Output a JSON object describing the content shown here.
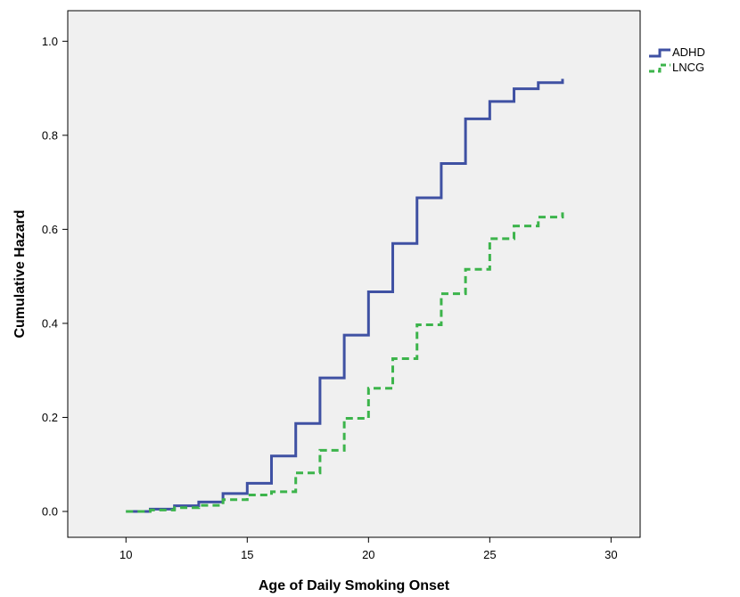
{
  "chart_data": {
    "type": "line",
    "step": true,
    "xlabel": "Age of Daily Smoking Onset",
    "ylabel": "Cumulative Hazard",
    "xlim": [
      7.6,
      31.2
    ],
    "ylim": [
      -0.055,
      1.065
    ],
    "xticks": [
      10,
      15,
      20,
      25,
      30
    ],
    "yticks": [
      0.0,
      0.2,
      0.4,
      0.6,
      0.8,
      1.0
    ],
    "xtick_labels": [
      "10",
      "15",
      "20",
      "25",
      "30"
    ],
    "ytick_labels": [
      "0.0",
      "0.2",
      "0.4",
      "0.6",
      "0.8",
      "1.0"
    ],
    "grid": false,
    "legend_position": "right",
    "plot_background": "#f0f0f0",
    "series": [
      {
        "name": "ADHD",
        "color": "#3f51a3",
        "dash": "solid",
        "x": [
          10,
          11,
          12,
          13,
          14,
          15,
          16,
          17,
          18,
          19,
          20,
          21,
          22,
          23,
          24,
          25,
          26,
          27,
          28
        ],
        "y": [
          0.0,
          0.005,
          0.012,
          0.02,
          0.038,
          0.06,
          0.118,
          0.187,
          0.284,
          0.375,
          0.467,
          0.57,
          0.667,
          0.74,
          0.835,
          0.872,
          0.899,
          0.912,
          0.92
        ]
      },
      {
        "name": "LNCG",
        "color": "#3cb44b",
        "dash": "dashed",
        "x": [
          10,
          11,
          12,
          13,
          14,
          15,
          16,
          17,
          18,
          19,
          20,
          21,
          22,
          23,
          24,
          25,
          26,
          27,
          28
        ],
        "y": [
          0.0,
          0.003,
          0.008,
          0.013,
          0.025,
          0.035,
          0.042,
          0.082,
          0.13,
          0.198,
          0.262,
          0.325,
          0.397,
          0.463,
          0.515,
          0.58,
          0.607,
          0.626,
          0.636
        ]
      }
    ]
  }
}
